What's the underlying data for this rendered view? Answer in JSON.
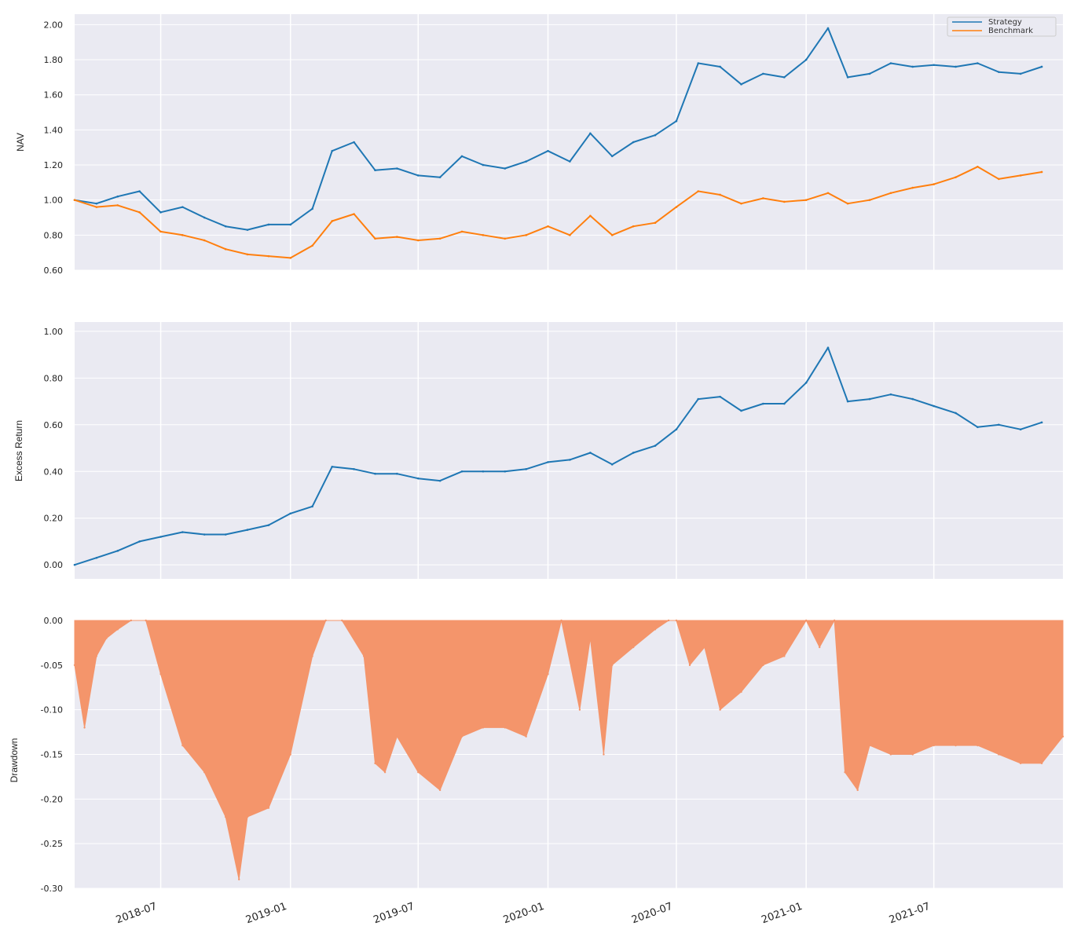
{
  "colors": {
    "strategy": "#1f77b4",
    "benchmark": "#ff7f0e",
    "drawdown": "#f4956b",
    "panel_bg": "#eaeaf2",
    "grid": "#ffffff"
  },
  "x_ticks": [
    "2018-07",
    "2019-01",
    "2019-07",
    "2020-01",
    "2020-07",
    "2021-01",
    "2021-07"
  ],
  "chart_data": [
    {
      "type": "line",
      "ylabel": "NAV",
      "ylim": [
        0.6,
        2.06
      ],
      "yticks": [
        "0.60",
        "0.80",
        "1.00",
        "1.20",
        "1.40",
        "1.60",
        "1.80",
        "2.00"
      ],
      "grid": true,
      "legend": "top-right",
      "x": [
        "2018-03-01",
        "2018-04-01",
        "2018-05-01",
        "2018-06-01",
        "2018-07-01",
        "2018-08-01",
        "2018-09-01",
        "2018-10-01",
        "2018-11-01",
        "2018-12-01",
        "2019-01-01",
        "2019-02-01",
        "2019-03-01",
        "2019-04-01",
        "2019-05-01",
        "2019-06-01",
        "2019-07-01",
        "2019-08-01",
        "2019-09-01",
        "2019-10-01",
        "2019-11-01",
        "2019-12-01",
        "2020-01-01",
        "2020-02-01",
        "2020-03-01",
        "2020-04-01",
        "2020-05-01",
        "2020-06-01",
        "2020-07-01",
        "2020-08-01",
        "2020-09-01",
        "2020-10-01",
        "2020-11-01",
        "2020-12-01",
        "2021-01-01",
        "2021-02-01",
        "2021-03-01",
        "2021-04-01",
        "2021-05-01",
        "2021-06-01",
        "2021-07-01",
        "2021-08-01",
        "2021-09-01",
        "2021-10-01",
        "2021-11-01",
        "2021-12-01"
      ],
      "series": [
        {
          "name": "Strategy",
          "values": [
            1.0,
            0.98,
            1.02,
            1.05,
            0.93,
            0.96,
            0.9,
            0.85,
            0.83,
            0.86,
            0.86,
            0.95,
            1.28,
            1.33,
            1.17,
            1.18,
            1.14,
            1.13,
            1.25,
            1.2,
            1.18,
            1.22,
            1.28,
            1.22,
            1.38,
            1.25,
            1.33,
            1.37,
            1.45,
            1.78,
            1.76,
            1.66,
            1.72,
            1.7,
            1.8,
            1.98,
            1.7,
            1.72,
            1.78,
            1.76,
            1.77,
            1.76,
            1.78,
            1.73,
            1.72,
            1.76
          ]
        },
        {
          "name": "Benchmark",
          "values": [
            1.0,
            0.96,
            0.97,
            0.93,
            0.82,
            0.8,
            0.77,
            0.72,
            0.69,
            0.68,
            0.67,
            0.74,
            0.88,
            0.92,
            0.78,
            0.79,
            0.77,
            0.78,
            0.82,
            0.8,
            0.78,
            0.8,
            0.85,
            0.8,
            0.91,
            0.8,
            0.85,
            0.87,
            0.96,
            1.05,
            1.03,
            0.98,
            1.01,
            0.99,
            1.0,
            1.04,
            0.98,
            1.0,
            1.04,
            1.07,
            1.09,
            1.13,
            1.19,
            1.12,
            1.14,
            1.16
          ]
        }
      ]
    },
    {
      "type": "line",
      "ylabel": "Excess Return",
      "ylim": [
        -0.06,
        1.04
      ],
      "yticks": [
        "0.00",
        "0.20",
        "0.40",
        "0.60",
        "0.80",
        "1.00"
      ],
      "grid": true,
      "x": [
        "2018-03-01",
        "2018-04-01",
        "2018-05-01",
        "2018-06-01",
        "2018-07-01",
        "2018-08-01",
        "2018-09-01",
        "2018-10-01",
        "2018-11-01",
        "2018-12-01",
        "2019-01-01",
        "2019-02-01",
        "2019-03-01",
        "2019-04-01",
        "2019-05-01",
        "2019-06-01",
        "2019-07-01",
        "2019-08-01",
        "2019-09-01",
        "2019-10-01",
        "2019-11-01",
        "2019-12-01",
        "2020-01-01",
        "2020-02-01",
        "2020-03-01",
        "2020-04-01",
        "2020-05-01",
        "2020-06-01",
        "2020-07-01",
        "2020-08-01",
        "2020-09-01",
        "2020-10-01",
        "2020-11-01",
        "2020-12-01",
        "2021-01-01",
        "2021-02-01",
        "2021-03-01",
        "2021-04-01",
        "2021-05-01",
        "2021-06-01",
        "2021-07-01",
        "2021-08-01",
        "2021-09-01",
        "2021-10-01",
        "2021-11-01",
        "2021-12-01"
      ],
      "series": [
        {
          "name": "",
          "values": [
            0.0,
            0.03,
            0.06,
            0.1,
            0.12,
            0.14,
            0.13,
            0.13,
            0.15,
            0.17,
            0.22,
            0.25,
            0.42,
            0.41,
            0.39,
            0.39,
            0.37,
            0.36,
            0.4,
            0.4,
            0.4,
            0.41,
            0.44,
            0.45,
            0.48,
            0.43,
            0.48,
            0.51,
            0.58,
            0.71,
            0.72,
            0.66,
            0.69,
            0.69,
            0.78,
            0.93,
            0.7,
            0.71,
            0.73,
            0.71,
            0.68,
            0.65,
            0.59,
            0.6,
            0.58,
            0.61
          ]
        }
      ]
    },
    {
      "type": "area",
      "ylabel": "Drawdown",
      "ylim": [
        -0.3,
        0.0
      ],
      "yticks": [
        "-0.30",
        "-0.25",
        "-0.20",
        "-0.15",
        "-0.10",
        "-0.05",
        "0.00"
      ],
      "grid": true,
      "x": [
        "2018-03-01",
        "2018-03-15",
        "2018-04-01",
        "2018-04-15",
        "2018-05-01",
        "2018-05-20",
        "2018-06-10",
        "2018-07-01",
        "2018-08-01",
        "2018-09-01",
        "2018-10-01",
        "2018-10-20",
        "2018-11-01",
        "2018-12-01",
        "2019-01-01",
        "2019-02-01",
        "2019-02-20",
        "2019-03-15",
        "2019-04-15",
        "2019-05-01",
        "2019-05-15",
        "2019-06-01",
        "2019-07-01",
        "2019-08-01",
        "2019-09-01",
        "2019-10-01",
        "2019-11-01",
        "2019-12-01",
        "2020-01-01",
        "2020-01-20",
        "2020-02-15",
        "2020-03-01",
        "2020-03-20",
        "2020-04-01",
        "2020-05-01",
        "2020-06-01",
        "2020-06-20",
        "2020-07-01",
        "2020-07-20",
        "2020-08-10",
        "2020-09-01",
        "2020-10-01",
        "2020-11-01",
        "2020-12-01",
        "2021-01-01",
        "2021-01-20",
        "2021-02-10",
        "2021-02-25",
        "2021-03-15",
        "2021-04-01",
        "2021-05-01",
        "2021-06-01",
        "2021-07-01",
        "2021-08-01",
        "2021-09-01",
        "2021-10-01",
        "2021-11-01",
        "2021-12-01",
        "2021-12-31"
      ],
      "values": [
        -0.05,
        -0.12,
        -0.04,
        -0.02,
        -0.01,
        0.0,
        0.0,
        -0.06,
        -0.14,
        -0.17,
        -0.22,
        -0.29,
        -0.22,
        -0.21,
        -0.15,
        -0.04,
        0.0,
        0.0,
        -0.04,
        -0.16,
        -0.17,
        -0.13,
        -0.17,
        -0.19,
        -0.13,
        -0.12,
        -0.12,
        -0.13,
        -0.06,
        0.0,
        -0.1,
        -0.02,
        -0.15,
        -0.05,
        -0.03,
        -0.01,
        0.0,
        0.0,
        -0.05,
        -0.03,
        -0.1,
        -0.08,
        -0.05,
        -0.04,
        0.0,
        -0.03,
        0.0,
        -0.17,
        -0.19,
        -0.14,
        -0.15,
        -0.15,
        -0.14,
        -0.14,
        -0.14,
        -0.15,
        -0.16,
        -0.16,
        -0.13
      ]
    }
  ]
}
